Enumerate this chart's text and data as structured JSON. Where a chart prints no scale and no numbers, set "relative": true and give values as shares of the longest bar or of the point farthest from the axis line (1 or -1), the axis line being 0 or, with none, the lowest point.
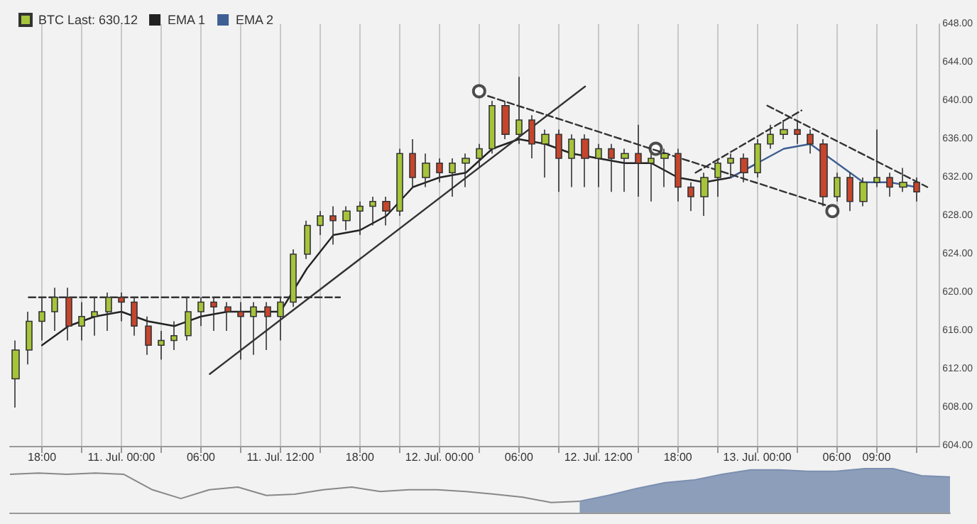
{
  "chart_data": [
    {
      "type": "candlestick",
      "series": [
        {
          "type": "candlestick",
          "name": "BTC Last: 630.12",
          "x": [
            "--07-10T16:00",
            "--07-10T17:00",
            "--07-10T18:00",
            "--07-10T19:00",
            "--07-10T20:00",
            "--07-10T21:00",
            "--07-10T22:00",
            "--07-10T23:00",
            "--07-11T00:00",
            "--07-11T01:00",
            "--07-11T02:00",
            "--07-11T03:00",
            "--07-11T04:00",
            "--07-11T05:00",
            "--07-11T06:00",
            "--07-11T07:00",
            "--07-11T08:00",
            "--07-11T09:00",
            "--07-11T10:00",
            "--07-11T11:00",
            "--07-11T12:00",
            "--07-11T13:00",
            "--07-11T14:00",
            "--07-11T15:00",
            "--07-11T16:00",
            "--07-11T17:00",
            "--07-11T18:00",
            "--07-11T19:00",
            "--07-11T20:00",
            "--07-11T21:00",
            "--07-11T22:00",
            "--07-11T23:00",
            "--07-12T00:00",
            "--07-12T01:00",
            "--07-12T02:00",
            "--07-12T03:00",
            "--07-12T04:00",
            "--07-12T05:00",
            "--07-12T06:00",
            "--07-12T07:00",
            "--07-12T08:00",
            "--07-12T09:00",
            "--07-12T10:00",
            "--07-12T11:00",
            "--07-12T12:00",
            "--07-12T13:00",
            "--07-12T14:00",
            "--07-12T15:00",
            "--07-12T16:00",
            "--07-12T17:00",
            "--07-12T18:00",
            "--07-12T19:00",
            "--07-12T20:00",
            "--07-12T21:00",
            "--07-12T22:00",
            "--07-12T23:00",
            "--07-13T00:00",
            "--07-13T01:00",
            "--07-13T02:00",
            "--07-13T03:00",
            "--07-13T04:00",
            "--07-13T05:00",
            "--07-13T06:00",
            "--07-13T07:00",
            "--07-13T08:00",
            "--07-13T09:00",
            "--07-13T10:00",
            "--07-13T11:00",
            "--07-13T12:00"
          ],
          "ohlc": [
            [
              611,
              615,
              608,
              614
            ],
            [
              614,
              618,
              612.5,
              617
            ],
            [
              617,
              619.5,
              615,
              618
            ],
            [
              618,
              620.5,
              616,
              619.5
            ],
            [
              619.5,
              620.5,
              615,
              616.5
            ],
            [
              616.5,
              619,
              615,
              617.5
            ],
            [
              617.5,
              619.5,
              615.5,
              618
            ],
            [
              618,
              620,
              616,
              619.5
            ],
            [
              619.5,
              620,
              617,
              619
            ],
            [
              619,
              619.5,
              615.5,
              616.5
            ],
            [
              616.5,
              617.5,
              613.5,
              614.5
            ],
            [
              614.5,
              616,
              613,
              615
            ],
            [
              615,
              617,
              614,
              615.5
            ],
            [
              615.5,
              619.5,
              615,
              618
            ],
            [
              618,
              619.5,
              616.5,
              619
            ],
            [
              619,
              619.5,
              616,
              618.5
            ],
            [
              618.5,
              619,
              616,
              618
            ],
            [
              618,
              619,
              613,
              617.5
            ],
            [
              617.5,
              619,
              613.5,
              618.5
            ],
            [
              618.5,
              619,
              614,
              617.5
            ],
            [
              617.5,
              619.5,
              615,
              619
            ],
            [
              619,
              624.5,
              618.5,
              624
            ],
            [
              624,
              627.5,
              623.5,
              627
            ],
            [
              627,
              628.5,
              626,
              628
            ],
            [
              628,
              629,
              625,
              627.5
            ],
            [
              627.5,
              629,
              626.5,
              628.5
            ],
            [
              628.5,
              629.5,
              626,
              629
            ],
            [
              629,
              630,
              627,
              629.5
            ],
            [
              629.5,
              630,
              627,
              628.5
            ],
            [
              628.5,
              635,
              628,
              634.5
            ],
            [
              634.5,
              636,
              631,
              632
            ],
            [
              632,
              634.5,
              631,
              633.5
            ],
            [
              633.5,
              634,
              631.5,
              632.5
            ],
            [
              632.5,
              634,
              630,
              633.5
            ],
            [
              633.5,
              634.5,
              631,
              634
            ],
            [
              634,
              635.5,
              633,
              635
            ],
            [
              635,
              640,
              634.5,
              639.5
            ],
            [
              639.5,
              640,
              636,
              636.5
            ],
            [
              636.5,
              642.5,
              635.5,
              638
            ],
            [
              638,
              638.5,
              634,
              635.5
            ],
            [
              635.5,
              637,
              632,
              636.5
            ],
            [
              636.5,
              637,
              630.5,
              634
            ],
            [
              634,
              636.5,
              631,
              636
            ],
            [
              636,
              636.5,
              631,
              634
            ],
            [
              634,
              635.5,
              631,
              635
            ],
            [
              635,
              635.5,
              630.5,
              634
            ],
            [
              634,
              635,
              630.5,
              634.5
            ],
            [
              634.5,
              637.5,
              630,
              633.5
            ],
            [
              633.5,
              634.5,
              629.5,
              634
            ],
            [
              634,
              635,
              631,
              634.5
            ],
            [
              634.5,
              635,
              629.5,
              631
            ],
            [
              631,
              631.5,
              628.5,
              630
            ],
            [
              630,
              632.5,
              628,
              632
            ],
            [
              632,
              634,
              630,
              633.5
            ],
            [
              633.5,
              634.5,
              632,
              634
            ],
            [
              634,
              634.5,
              631.5,
              632.5
            ],
            [
              632.5,
              636,
              632,
              635.5
            ],
            [
              635.5,
              637.5,
              635,
              636.5
            ],
            [
              636.5,
              638,
              636,
              637
            ],
            [
              637,
              638,
              635.5,
              636.5
            ],
            [
              636.5,
              637,
              634.5,
              635.5
            ],
            [
              635.5,
              636,
              629,
              630
            ],
            [
              630,
              632.5,
              629.5,
              632
            ],
            [
              632,
              632.5,
              628.5,
              629.5
            ],
            [
              629.5,
              632,
              629,
              631.5
            ],
            [
              631.5,
              637,
              631,
              632
            ],
            [
              632,
              632.5,
              630,
              631
            ],
            [
              631,
              633,
              630.5,
              631.5
            ],
            [
              631.5,
              632,
              629.5,
              630.5
            ]
          ],
          "colors": [
            "#a6c43a",
            "#a6c43a",
            "#a6c43a",
            "#a6c43a",
            "#c6452c",
            "#a6c43a",
            "#a6c43a",
            "#a6c43a",
            "#c6452c",
            "#c6452c",
            "#c6452c",
            "#a6c43a",
            "#a6c43a",
            "#a6c43a",
            "#a6c43a",
            "#c6452c",
            "#c6452c",
            "#c6452c",
            "#a6c43a",
            "#c6452c",
            "#a6c43a",
            "#a6c43a",
            "#a6c43a",
            "#a6c43a",
            "#c6452c",
            "#a6c43a",
            "#a6c43a",
            "#a6c43a",
            "#c6452c",
            "#a6c43a",
            "#c6452c",
            "#a6c43a",
            "#c6452c",
            "#a6c43a",
            "#a6c43a",
            "#a6c43a",
            "#a6c43a",
            "#c6452c",
            "#a6c43a",
            "#c6452c",
            "#a6c43a",
            "#c6452c",
            "#a6c43a",
            "#c6452c",
            "#a6c43a",
            "#c6452c",
            "#a6c43a",
            "#c6452c",
            "#a6c43a",
            "#a6c43a",
            "#c6452c",
            "#c6452c",
            "#a6c43a",
            "#a6c43a",
            "#a6c43a",
            "#c6452c",
            "#a6c43a",
            "#a6c43a",
            "#a6c43a",
            "#c6452c",
            "#c6452c",
            "#c6452c",
            "#a6c43a",
            "#c6452c",
            "#a6c43a",
            "#a6c43a",
            "#c6452c",
            "#a6c43a",
            "#c6452c"
          ]
        },
        {
          "type": "line",
          "name": "EMA 1",
          "color": "#222222",
          "line_style": "solid",
          "x": [
            "--07-10T18:00",
            "--07-10T20:00",
            "--07-10T22:00",
            "--07-11T00:00",
            "--07-11T02:00",
            "--07-11T04:00",
            "--07-11T06:00",
            "--07-11T08:00",
            "--07-11T10:00",
            "--07-11T12:00",
            "--07-11T14:00",
            "--07-11T16:00",
            "--07-11T18:00",
            "--07-11T20:00",
            "--07-11T22:00",
            "--07-12T00:00",
            "--07-12T02:00",
            "--07-12T04:00",
            "--07-12T06:00",
            "--07-12T08:00",
            "--07-12T10:00",
            "--07-12T12:00",
            "--07-12T14:00",
            "--07-12T16:00",
            "--07-12T18:00",
            "--07-12T20:00",
            "--07-12T22:00",
            "--07-13T00:00"
          ],
          "values": [
            614.5,
            616.5,
            617.5,
            618,
            617,
            616.5,
            617.5,
            618,
            618,
            618,
            622.5,
            626,
            626.5,
            628,
            631,
            632,
            632.5,
            635,
            636,
            635.5,
            634.5,
            634,
            633.5,
            633.5,
            632,
            631.5,
            632,
            633.5
          ]
        },
        {
          "type": "line",
          "name": "EMA 2",
          "color": "#3d5f93",
          "line_style": "solid",
          "x": [
            "--07-12T22:00",
            "--07-13T00:00",
            "--07-13T02:00",
            "--07-13T04:00",
            "--07-13T06:00",
            "--07-13T08:00",
            "--07-13T10:00",
            "--07-13T12:00"
          ],
          "values": [
            632,
            633.5,
            635,
            635.5,
            633.5,
            631.5,
            631.5,
            631
          ]
        },
        {
          "type": "line",
          "color": "#333333",
          "line_style": "dashed",
          "x": [
            "--07-10T17:00",
            "--07-11T16:30"
          ],
          "values": [
            619.5,
            619.5
          ]
        },
        {
          "type": "line",
          "color": "#333333",
          "line_style": "solid",
          "x": [
            "--07-11T06:40",
            "--07-12T11:00"
          ],
          "values": [
            611.5,
            641.5
          ]
        },
        {
          "type": "line",
          "color": "#333333",
          "line_style": "dashed",
          "x": [
            "--07-12T03:40",
            "--07-13T05:25"
          ],
          "values": [
            640.5,
            629
          ]
        },
        {
          "type": "line",
          "color": "#333333",
          "line_style": "dashed",
          "x": [
            "--07-13T00:45",
            "--07-13T12:50"
          ],
          "values": [
            639.5,
            631
          ]
        },
        {
          "type": "line",
          "color": "#333333",
          "line_style": "dashed",
          "x": [
            "--07-12T19:20",
            "--07-13T03:20"
          ],
          "values": [
            632.5,
            639
          ]
        },
        {
          "type": "scatter",
          "color": "#222222",
          "marker": "circle",
          "x": [
            "--07-12T03:00",
            "--07-12T16:20",
            "--07-13T05:40"
          ],
          "values": [
            641,
            635,
            628.5
          ]
        }
      ],
      "xlim": [
        "--07-10T15:35",
        "--07-13T13:45"
      ],
      "xticks": [
        {
          "value": "--07-10T18:00",
          "label": "18:00"
        },
        {
          "value": "--07-10T21:00",
          "label": null
        },
        {
          "value": "--07-11T00:00",
          "label": "11. Jul. 00:00"
        },
        {
          "value": "--07-11T03:00",
          "label": null
        },
        {
          "value": "--07-11T06:00",
          "label": "06:00"
        },
        {
          "value": "--07-11T09:00",
          "label": null
        },
        {
          "value": "--07-11T12:00",
          "label": "11. Jul. 12:00"
        },
        {
          "value": "--07-11T15:00",
          "label": null
        },
        {
          "value": "--07-11T18:00",
          "label": "18:00"
        },
        {
          "value": "--07-11T21:00",
          "label": null
        },
        {
          "value": "--07-12T00:00",
          "label": "12. Jul. 00:00"
        },
        {
          "value": "--07-12T03:00",
          "label": null
        },
        {
          "value": "--07-12T06:00",
          "label": "06:00"
        },
        {
          "value": "--07-12T09:00",
          "label": null
        },
        {
          "value": "--07-12T12:00",
          "label": "12. Jul. 12:00"
        },
        {
          "value": "--07-12T15:00",
          "label": null
        },
        {
          "value": "--07-12T18:00",
          "label": "18:00"
        },
        {
          "value": "--07-12T21:00",
          "label": null
        },
        {
          "value": "--07-13T00:00",
          "label": "13. Jul. 00:00"
        },
        {
          "value": "--07-13T03:00",
          "label": null
        },
        {
          "value": "--07-13T06:00",
          "label": "06:00"
        },
        {
          "value": "--07-13T09:00",
          "label": "09:00"
        },
        {
          "value": "--07-13T12:00",
          "label": null
        }
      ],
      "ylim": [
        604,
        648
      ],
      "yticks": [
        {
          "value": 604,
          "label": "604.00"
        },
        {
          "value": 608,
          "label": "608.00"
        },
        {
          "value": 612,
          "label": "612.00"
        },
        {
          "value": 616,
          "label": "616.00"
        },
        {
          "value": 620,
          "label": "620.00"
        },
        {
          "value": 624,
          "label": "624.00"
        },
        {
          "value": 628,
          "label": "628.00"
        },
        {
          "value": 632,
          "label": "632.00"
        },
        {
          "value": 636,
          "label": "636.00"
        },
        {
          "value": 640,
          "label": "640.00"
        },
        {
          "value": 644,
          "label": "644.00"
        },
        {
          "value": 648,
          "label": "648.00"
        }
      ],
      "grid": "x",
      "legend": "top left",
      "marker": "none"
    },
    {
      "type": "area",
      "relative": true,
      "categories": [
        null,
        null,
        null,
        null,
        null,
        null,
        null,
        null,
        null,
        null,
        null,
        null,
        null,
        null,
        null,
        null,
        null,
        null,
        null,
        null,
        null,
        null,
        null,
        null,
        null,
        null,
        null,
        null,
        null,
        null,
        null,
        null,
        null,
        null
      ],
      "series": [
        {
          "type": "line",
          "color": "#888888",
          "values": [
            0.87,
            0.9,
            0.87,
            0.9,
            0.87,
            0.52,
            0.32,
            0.52,
            0.58,
            0.39,
            0.42,
            0.52,
            0.58,
            0.48,
            0.52,
            0.52,
            0.48,
            0.42,
            0.35,
            0.23,
            0.26,
            null,
            null,
            null,
            null,
            null,
            null,
            null,
            null,
            null,
            null,
            null,
            null,
            null
          ]
        },
        {
          "type": "area",
          "color": "#7b8fb0",
          "values": [
            null,
            null,
            null,
            null,
            null,
            null,
            null,
            null,
            null,
            null,
            null,
            null,
            null,
            null,
            null,
            null,
            null,
            null,
            null,
            null,
            0.26,
            0.39,
            0.55,
            0.68,
            0.74,
            0.87,
            0.97,
            0.97,
            0.94,
            0.94,
            1,
            1,
            0.84,
            0.81
          ]
        }
      ]
    }
  ]
}
